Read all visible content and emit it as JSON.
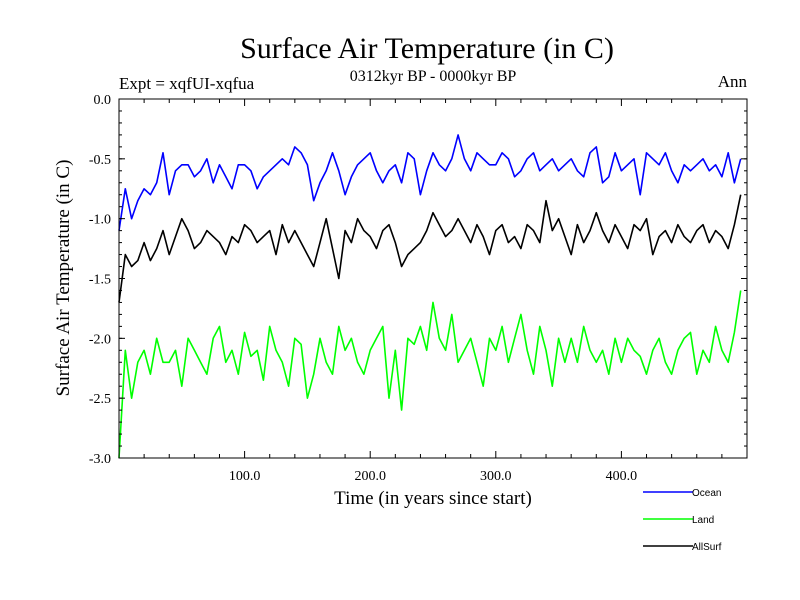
{
  "chart_data": {
    "type": "line",
    "title": "Surface Air Temperature (in C)",
    "subtitle": "0312kyr BP - 0000kyr BP",
    "expt_label": "Expt = xqfUI-xqfua",
    "period_label": "Ann",
    "xlabel": "Time (in years since start)",
    "ylabel": "Surface Air Temperature (in C)",
    "xlim": [
      0,
      500
    ],
    "ylim": [
      -3.0,
      0.0
    ],
    "x_ticks": [
      {
        "value": 100,
        "label": "100.0"
      },
      {
        "value": 200,
        "label": "200.0"
      },
      {
        "value": 300,
        "label": "300.0"
      },
      {
        "value": 400,
        "label": "400.0"
      }
    ],
    "y_ticks": [
      {
        "value": 0.0,
        "label": "0.0"
      },
      {
        "value": -0.5,
        "label": "-0.5"
      },
      {
        "value": -1.0,
        "label": "-1.0"
      },
      {
        "value": -1.5,
        "label": "-1.5"
      },
      {
        "value": -2.0,
        "label": "-2.0"
      },
      {
        "value": -2.5,
        "label": "-2.5"
      },
      {
        "value": -3.0,
        "label": "-3.0"
      }
    ],
    "x_step": 5,
    "series": [
      {
        "name": "Ocean",
        "color": "#0000ff",
        "values": [
          -1.1,
          -0.75,
          -1.0,
          -0.85,
          -0.75,
          -0.8,
          -0.7,
          -0.45,
          -0.8,
          -0.6,
          -0.55,
          -0.55,
          -0.65,
          -0.6,
          -0.5,
          -0.7,
          -0.55,
          -0.65,
          -0.75,
          -0.55,
          -0.55,
          -0.6,
          -0.75,
          -0.65,
          -0.6,
          -0.55,
          -0.5,
          -0.55,
          -0.4,
          -0.45,
          -0.55,
          -0.85,
          -0.7,
          -0.6,
          -0.45,
          -0.6,
          -0.8,
          -0.65,
          -0.55,
          -0.5,
          -0.45,
          -0.6,
          -0.7,
          -0.6,
          -0.55,
          -0.7,
          -0.45,
          -0.5,
          -0.8,
          -0.6,
          -0.45,
          -0.55,
          -0.6,
          -0.5,
          -0.3,
          -0.5,
          -0.6,
          -0.45,
          -0.5,
          -0.55,
          -0.55,
          -0.45,
          -0.5,
          -0.65,
          -0.6,
          -0.5,
          -0.45,
          -0.6,
          -0.55,
          -0.5,
          -0.6,
          -0.55,
          -0.5,
          -0.6,
          -0.65,
          -0.45,
          -0.4,
          -0.7,
          -0.65,
          -0.45,
          -0.6,
          -0.55,
          -0.5,
          -0.8,
          -0.45,
          -0.5,
          -0.55,
          -0.45,
          -0.6,
          -0.7,
          -0.55,
          -0.6,
          -0.55,
          -0.5,
          -0.6,
          -0.55,
          -0.65,
          -0.45,
          -0.7,
          -0.5
        ]
      },
      {
        "name": "Land",
        "color": "#00ff00",
        "values": [
          -3.0,
          -2.1,
          -2.5,
          -2.2,
          -2.1,
          -2.3,
          -2.0,
          -2.2,
          -2.2,
          -2.1,
          -2.4,
          -2.0,
          -2.1,
          -2.2,
          -2.3,
          -2.0,
          -1.9,
          -2.2,
          -2.1,
          -2.3,
          -1.95,
          -2.15,
          -2.1,
          -2.35,
          -1.9,
          -2.1,
          -2.2,
          -2.4,
          -2.0,
          -2.05,
          -2.5,
          -2.3,
          -2.0,
          -2.2,
          -2.3,
          -1.9,
          -2.1,
          -2.0,
          -2.2,
          -2.3,
          -2.1,
          -2.0,
          -1.9,
          -2.5,
          -2.1,
          -2.6,
          -2.0,
          -2.05,
          -1.9,
          -2.1,
          -1.7,
          -2.0,
          -2.1,
          -1.8,
          -2.2,
          -2.1,
          -2.0,
          -2.2,
          -2.4,
          -2.0,
          -2.1,
          -1.9,
          -2.2,
          -2.0,
          -1.8,
          -2.1,
          -2.3,
          -1.9,
          -2.1,
          -2.4,
          -2.0,
          -2.2,
          -2.0,
          -2.2,
          -1.9,
          -2.1,
          -2.2,
          -2.1,
          -2.3,
          -2.0,
          -2.2,
          -2.0,
          -2.1,
          -2.15,
          -2.3,
          -2.1,
          -2.0,
          -2.2,
          -2.3,
          -2.1,
          -2.0,
          -1.95,
          -2.3,
          -2.1,
          -2.2,
          -1.9,
          -2.1,
          -2.2,
          -1.95,
          -1.6
        ]
      },
      {
        "name": "AllSurf",
        "color": "#000000",
        "values": [
          -1.7,
          -1.3,
          -1.4,
          -1.35,
          -1.2,
          -1.35,
          -1.25,
          -1.1,
          -1.3,
          -1.15,
          -1.0,
          -1.1,
          -1.25,
          -1.2,
          -1.1,
          -1.15,
          -1.2,
          -1.3,
          -1.15,
          -1.2,
          -1.05,
          -1.1,
          -1.2,
          -1.15,
          -1.1,
          -1.3,
          -1.05,
          -1.2,
          -1.1,
          -1.2,
          -1.3,
          -1.4,
          -1.2,
          -1.0,
          -1.25,
          -1.5,
          -1.1,
          -1.2,
          -1.0,
          -1.1,
          -1.15,
          -1.25,
          -1.1,
          -1.05,
          -1.2,
          -1.4,
          -1.3,
          -1.25,
          -1.2,
          -1.1,
          -0.95,
          -1.05,
          -1.15,
          -1.1,
          -1.0,
          -1.1,
          -1.2,
          -1.05,
          -1.15,
          -1.3,
          -1.1,
          -1.05,
          -1.2,
          -1.15,
          -1.25,
          -1.05,
          -1.1,
          -1.2,
          -0.85,
          -1.1,
          -1.0,
          -1.15,
          -1.3,
          -1.05,
          -1.2,
          -1.1,
          -0.95,
          -1.1,
          -1.2,
          -1.05,
          -1.15,
          -1.25,
          -1.05,
          -1.1,
          -1.0,
          -1.3,
          -1.15,
          -1.1,
          -1.2,
          -1.05,
          -1.15,
          -1.2,
          -1.1,
          -1.05,
          -1.2,
          -1.1,
          -1.15,
          -1.25,
          -1.05,
          -0.8
        ]
      }
    ],
    "legend": {
      "placement": "bottom-right",
      "entries": [
        "Ocean",
        "Land",
        "AllSurf"
      ]
    }
  }
}
